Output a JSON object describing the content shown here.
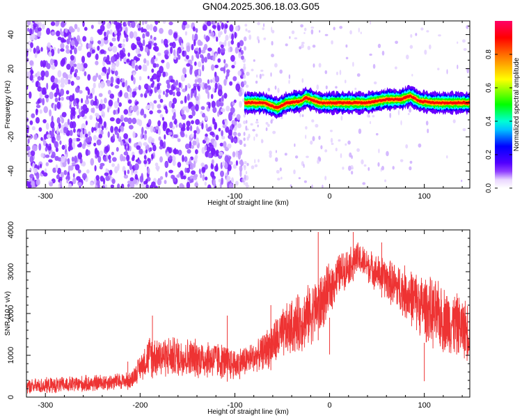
{
  "title": "GN04.2025.306.18.03.G05",
  "chart_data": [
    {
      "type": "heatmap",
      "xlabel": "Height of straight line (km)",
      "ylabel": "Frequency (Hz)",
      "xlim": [
        -320,
        148
      ],
      "ylim": [
        -50,
        48
      ],
      "xticks": [
        -300,
        -200,
        -100,
        0,
        100
      ],
      "yticks": [
        -40,
        -20,
        0,
        20,
        40
      ],
      "colorbar": {
        "label": "Normalized spectral amplitude",
        "range": [
          0,
          1
        ],
        "ticks": [
          0.0,
          0.2,
          0.4,
          0.6,
          0.8
        ],
        "colormap": [
          "#ffffff",
          "#6a00ff",
          "#0000ff",
          "#00ffff",
          "#00ff00",
          "#ffff00",
          "#ff8000",
          "#ff0000",
          "#ff0066"
        ]
      },
      "noise_region_km": [
        -320,
        -90
      ],
      "signal_track": {
        "x": [
          -90,
          -70,
          -55,
          -45,
          -30,
          -25,
          -20,
          -10,
          0,
          20,
          40,
          60,
          75,
          85,
          95,
          110,
          130,
          148
        ],
        "y": [
          0,
          0,
          -3,
          0,
          1,
          3,
          2,
          0,
          0,
          0,
          0,
          2,
          2,
          4,
          1,
          0,
          0,
          0
        ],
        "core_amplitude": 0.95,
        "halo_amplitude": 0.3
      }
    },
    {
      "type": "line",
      "xlabel": "Height of straight line (km)",
      "ylabel": "SNR (10 * v/v)",
      "xlim": [
        -320,
        148
      ],
      "ylim": [
        0,
        4000
      ],
      "xticks": [
        -300,
        -200,
        -100,
        0,
        100
      ],
      "yticks": [
        0,
        1000,
        2000,
        3000,
        4000
      ],
      "color": "#ee3333",
      "envelope": {
        "x": [
          -320,
          -250,
          -210,
          -200,
          -190,
          -120,
          -100,
          -75,
          -60,
          -45,
          -30,
          -10,
          10,
          30,
          50,
          80,
          110,
          148
        ],
        "lower": [
          50,
          100,
          180,
          380,
          450,
          400,
          350,
          600,
          650,
          900,
          1000,
          1400,
          2400,
          2900,
          2500,
          1800,
          1050,
          800
        ],
        "upper": [
          450,
          550,
          620,
          1050,
          1550,
          1400,
          1200,
          1400,
          1900,
          2300,
          2600,
          3000,
          3500,
          3750,
          3450,
          3200,
          2900,
          2350
        ]
      },
      "spikes": [
        {
          "x": -213,
          "y": 850
        },
        {
          "x": -187,
          "y": 1950
        },
        {
          "x": -108,
          "y": 1950
        },
        {
          "x": -62,
          "y": 2200
        },
        {
          "x": -12,
          "y": 3950
        },
        {
          "x": 0,
          "y": 1020
        },
        {
          "x": 25,
          "y": 3950
        },
        {
          "x": 100,
          "y": 380
        },
        {
          "x": 55,
          "y": 3700
        }
      ]
    }
  ]
}
